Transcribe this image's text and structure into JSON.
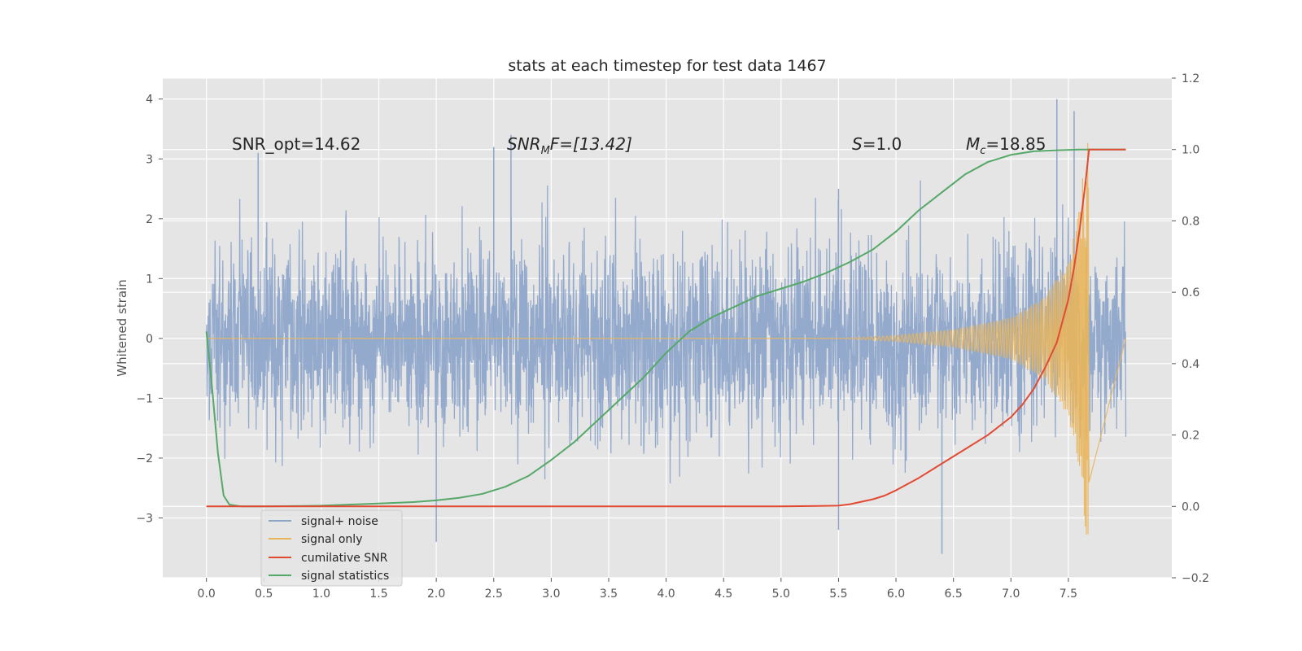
{
  "chart_data": {
    "type": "line",
    "title": "stats at each timestep for test data 1467",
    "xlabel": "",
    "ylabel": "Whitened strain",
    "ylabel_right": "",
    "xlim": [
      -0.38,
      8.4
    ],
    "ylim": [
      -4.0,
      4.35
    ],
    "ylim_right": [
      -0.2,
      1.2
    ],
    "x_ticks": [
      "0.0",
      "0.5",
      "1.0",
      "1.5",
      "2.0",
      "2.5",
      "3.0",
      "3.5",
      "4.0",
      "4.5",
      "5.0",
      "5.5",
      "6.0",
      "6.5",
      "7.0",
      "7.5"
    ],
    "y_ticks": [
      "4",
      "3",
      "2",
      "1",
      "0",
      "−1",
      "−2",
      "−3"
    ],
    "y_ticks_right": [
      "1.2",
      "1.0",
      "0.8",
      "0.6",
      "0.4",
      "0.2",
      "0.0",
      "−0.2"
    ],
    "grid": true,
    "background": "#e5e5e5",
    "legend_position": "lower-left",
    "annotations": {
      "snr_opt": "SNR_opt=14.62",
      "snr_mf_main": "SNR",
      "snr_mf_sub": "M",
      "snr_mf_rest": "F=[13.42]",
      "s_italic": "S",
      "s_rest": "=1.0",
      "mc_main": "M",
      "mc_sub": "c",
      "mc_rest": "=18.85"
    },
    "series": [
      {
        "name": "signal+ noise",
        "axis": "left",
        "color": "#8fa6cb",
        "style": "noise",
        "x_range": [
          0.0,
          8.0
        ],
        "envelope_abs": 1.0,
        "approx_peaks": [
          [
            0.45,
            3.1
          ],
          [
            2.5,
            3.2
          ],
          [
            2.65,
            3.4
          ],
          [
            5.5,
            2.5
          ],
          [
            7.4,
            4.0
          ],
          [
            7.55,
            3.8
          ],
          [
            2.0,
            -3.4
          ],
          [
            6.4,
            -3.6
          ],
          [
            5.5,
            -3.2
          ]
        ]
      },
      {
        "name": "signal only",
        "axis": "left",
        "color": "#e8b55c",
        "style": "chirp",
        "x_range": [
          0.0,
          7.68
        ],
        "envelope": [
          [
            0.0,
            0.0
          ],
          [
            5.5,
            0.0
          ],
          [
            6.0,
            0.05
          ],
          [
            6.5,
            0.15
          ],
          [
            7.0,
            0.35
          ],
          [
            7.3,
            0.7
          ],
          [
            7.5,
            1.3
          ],
          [
            7.6,
            2.2
          ],
          [
            7.66,
            3.4
          ]
        ]
      },
      {
        "name": "cumilative SNR",
        "axis": "right",
        "color": "#e24a33",
        "x": [
          0.0,
          1.0,
          2.0,
          3.0,
          4.0,
          5.0,
          5.5,
          5.6,
          5.8,
          5.9,
          6.0,
          6.2,
          6.4,
          6.6,
          6.8,
          7.0,
          7.1,
          7.2,
          7.3,
          7.4,
          7.5,
          7.55,
          7.6,
          7.65,
          7.68,
          8.0
        ],
        "y": [
          0.0,
          0.0,
          0.0,
          0.0,
          0.0,
          0.0,
          0.002,
          0.006,
          0.02,
          0.03,
          0.045,
          0.08,
          0.12,
          0.16,
          0.2,
          0.25,
          0.285,
          0.33,
          0.39,
          0.46,
          0.58,
          0.67,
          0.78,
          0.91,
          1.0,
          1.0
        ]
      },
      {
        "name": "signal statistics",
        "axis": "right",
        "color": "#348abd",
        "line_color": "#55a868",
        "x": [
          0.0,
          0.05,
          0.1,
          0.15,
          0.2,
          0.3,
          0.5,
          1.0,
          1.5,
          1.8,
          2.0,
          2.2,
          2.4,
          2.6,
          2.8,
          3.0,
          3.2,
          3.4,
          3.6,
          3.8,
          4.0,
          4.2,
          4.4,
          4.6,
          4.8,
          5.0,
          5.2,
          5.4,
          5.6,
          5.8,
          6.0,
          6.2,
          6.4,
          6.6,
          6.8,
          7.0,
          7.2,
          7.4,
          7.6,
          7.8,
          8.0
        ],
        "y": [
          0.49,
          0.33,
          0.15,
          0.03,
          0.005,
          0.0,
          0.0,
          0.002,
          0.008,
          0.012,
          0.017,
          0.024,
          0.035,
          0.055,
          0.085,
          0.13,
          0.18,
          0.24,
          0.3,
          0.36,
          0.43,
          0.49,
          0.53,
          0.56,
          0.59,
          0.61,
          0.63,
          0.655,
          0.685,
          0.72,
          0.77,
          0.83,
          0.88,
          0.93,
          0.965,
          0.985,
          0.995,
          0.998,
          1.0,
          1.0,
          1.0
        ]
      }
    ]
  }
}
